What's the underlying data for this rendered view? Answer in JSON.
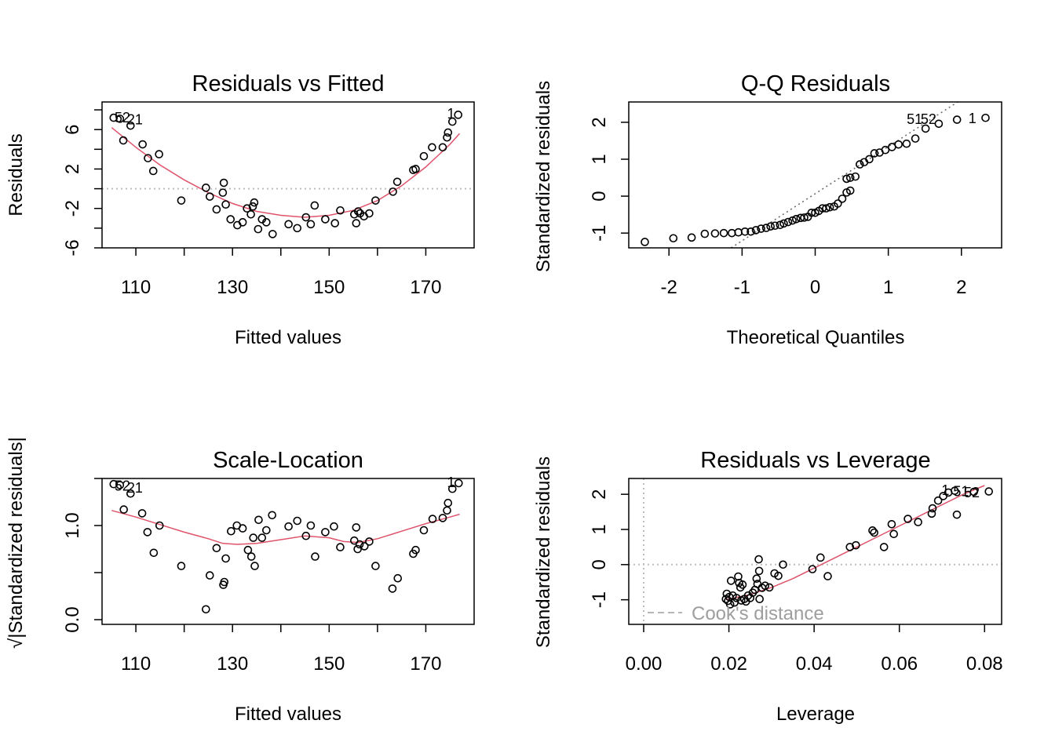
{
  "chart_data": [
    {
      "type": "scatter",
      "title": "Residuals vs Fitted",
      "xlabel": "Fitted values",
      "ylabel": "Residuals",
      "xlim": [
        103,
        180
      ],
      "ylim": [
        -6.0,
        8.8
      ],
      "xticks": [
        110,
        120,
        130,
        140,
        150,
        160,
        170
      ],
      "xtick_labels": [
        "110",
        "130",
        "150",
        "170"
      ],
      "yticks": [
        -6,
        -4,
        -2,
        0,
        2,
        4,
        6,
        8
      ],
      "ytick_labels": [
        "-6",
        "-2",
        "2",
        "6"
      ],
      "refline": {
        "kind": "horizontal",
        "y": 0,
        "style": "dotted"
      },
      "points": [
        [
          105.4,
          7.2
        ],
        [
          106.7,
          7.1
        ],
        [
          107.4,
          4.9
        ],
        [
          108.9,
          6.4
        ],
        [
          111.4,
          4.5
        ],
        [
          112.5,
          3.1
        ],
        [
          113.6,
          1.8
        ],
        [
          114.8,
          3.5
        ],
        [
          119.4,
          -1.2
        ],
        [
          124.5,
          0.1
        ],
        [
          125.3,
          -0.8
        ],
        [
          126.7,
          -2.1
        ],
        [
          128.0,
          -0.4
        ],
        [
          128.2,
          0.6
        ],
        [
          128.6,
          -1.6
        ],
        [
          129.6,
          -3.1
        ],
        [
          131.0,
          -3.7
        ],
        [
          132.1,
          -3.4
        ],
        [
          133.0,
          -2.0
        ],
        [
          133.8,
          -2.6
        ],
        [
          134.5,
          -1.4
        ],
        [
          134.2,
          -1.8
        ],
        [
          135.3,
          -4.1
        ],
        [
          136.1,
          -3.1
        ],
        [
          137.0,
          -3.4
        ],
        [
          138.3,
          -4.6
        ],
        [
          141.6,
          -3.6
        ],
        [
          143.4,
          -4.0
        ],
        [
          145.2,
          -2.9
        ],
        [
          146.2,
          -3.6
        ],
        [
          147.0,
          -1.7
        ],
        [
          149.2,
          -3.1
        ],
        [
          151.2,
          -3.5
        ],
        [
          152.3,
          -2.2
        ],
        [
          155.2,
          -2.6
        ],
        [
          155.6,
          -3.5
        ],
        [
          156.0,
          -2.3
        ],
        [
          156.4,
          -2.5
        ],
        [
          157.2,
          -2.8
        ],
        [
          158.3,
          -2.5
        ],
        [
          159.6,
          -1.2
        ],
        [
          163.2,
          -0.3
        ],
        [
          164.1,
          0.7
        ],
        [
          167.4,
          1.9
        ],
        [
          167.9,
          2.0
        ],
        [
          169.6,
          3.3
        ],
        [
          171.3,
          4.2
        ],
        [
          173.5,
          4.2
        ],
        [
          174.4,
          5.2
        ],
        [
          174.6,
          5.7
        ],
        [
          175.5,
          6.8
        ],
        [
          176.7,
          7.5
        ]
      ],
      "smooth": [
        [
          105,
          6.2
        ],
        [
          110,
          4.2
        ],
        [
          115,
          2.4
        ],
        [
          120,
          0.9
        ],
        [
          125,
          -0.4
        ],
        [
          130,
          -1.5
        ],
        [
          135,
          -2.3
        ],
        [
          140,
          -2.7
        ],
        [
          145,
          -2.9
        ],
        [
          150,
          -2.7
        ],
        [
          155,
          -2.2
        ],
        [
          160,
          -1.2
        ],
        [
          165,
          0.3
        ],
        [
          170,
          2.2
        ],
        [
          175,
          4.5
        ],
        [
          177,
          5.6
        ]
      ],
      "labels": [
        {
          "x": 107.2,
          "y": 7.2,
          "text": "52"
        },
        {
          "x": 109.8,
          "y": 7.0,
          "text": "21"
        },
        {
          "x": 175.2,
          "y": 7.6,
          "text": "1"
        }
      ]
    },
    {
      "type": "scatter",
      "title": "Q-Q Residuals",
      "xlabel": "Theoretical Quantiles",
      "ylabel": "Standardized residuals",
      "xlim": [
        -2.55,
        2.55
      ],
      "ylim": [
        -1.4,
        2.55
      ],
      "xticks": [
        -2,
        -1,
        0,
        1,
        2
      ],
      "xtick_labels": [
        "-2",
        "-1",
        "0",
        "1",
        "2"
      ],
      "yticks": [
        -1,
        0,
        1,
        2
      ],
      "ytick_labels": [
        "-1",
        "0",
        "1",
        "2"
      ],
      "refline": {
        "kind": "line",
        "x1": -1.15,
        "y1": -1.4,
        "x2": 1.95,
        "y2": 2.55,
        "style": "dotted"
      },
      "points": [
        [
          -2.33,
          -1.24
        ],
        [
          -1.94,
          -1.14
        ],
        [
          -1.69,
          -1.12
        ],
        [
          -1.51,
          -1.02
        ],
        [
          -1.37,
          -1.01
        ],
        [
          -1.25,
          -1.0
        ],
        [
          -1.14,
          -1.0
        ],
        [
          -1.05,
          -0.98
        ],
        [
          -0.96,
          -0.96
        ],
        [
          -0.88,
          -0.96
        ],
        [
          -0.81,
          -0.92
        ],
        [
          -0.74,
          -0.88
        ],
        [
          -0.67,
          -0.86
        ],
        [
          -0.61,
          -0.82
        ],
        [
          -0.55,
          -0.8
        ],
        [
          -0.48,
          -0.78
        ],
        [
          -0.43,
          -0.74
        ],
        [
          -0.37,
          -0.7
        ],
        [
          -0.31,
          -0.66
        ],
        [
          -0.26,
          -0.62
        ],
        [
          -0.2,
          -0.59
        ],
        [
          -0.15,
          -0.58
        ],
        [
          -0.1,
          -0.56
        ],
        [
          -0.05,
          -0.45
        ],
        [
          0.0,
          -0.45
        ],
        [
          0.05,
          -0.4
        ],
        [
          0.1,
          -0.33
        ],
        [
          0.15,
          -0.33
        ],
        [
          0.2,
          -0.3
        ],
        [
          0.26,
          -0.28
        ],
        [
          0.31,
          -0.2
        ],
        [
          0.37,
          -0.07
        ],
        [
          0.43,
          0.1
        ],
        [
          0.48,
          0.15
        ],
        [
          0.43,
          0.47
        ],
        [
          0.48,
          0.5
        ],
        [
          0.55,
          0.53
        ],
        [
          0.61,
          0.86
        ],
        [
          0.67,
          0.92
        ],
        [
          0.74,
          1.0
        ],
        [
          0.81,
          1.16
        ],
        [
          0.88,
          1.18
        ],
        [
          0.96,
          1.25
        ],
        [
          1.05,
          1.33
        ],
        [
          1.14,
          1.4
        ],
        [
          1.25,
          1.42
        ],
        [
          1.37,
          1.56
        ],
        [
          1.51,
          1.83
        ],
        [
          1.69,
          1.96
        ],
        [
          1.94,
          2.07
        ],
        [
          2.33,
          2.12
        ]
      ],
      "labels": [
        {
          "x": 1.36,
          "y": 2.08,
          "text": "51"
        },
        {
          "x": 1.55,
          "y": 2.08,
          "text": "52"
        },
        {
          "x": 2.15,
          "y": 2.1,
          "text": "1"
        }
      ]
    },
    {
      "type": "scatter",
      "title": "Scale-Location",
      "xlabel": "Fitted values",
      "ylabel": "√|Standardized residuals|",
      "xlim": [
        103,
        180
      ],
      "ylim": [
        -0.05,
        1.5
      ],
      "xticks": [
        110,
        120,
        130,
        140,
        150,
        160,
        170
      ],
      "xtick_labels": [
        "110",
        "130",
        "150",
        "170"
      ],
      "yticks": [
        0.0,
        0.5,
        1.0,
        1.5
      ],
      "ytick_labels": [
        "0.0",
        "1.0"
      ],
      "points": [
        [
          105.4,
          1.44
        ],
        [
          106.7,
          1.43
        ],
        [
          107.5,
          1.17
        ],
        [
          108.9,
          1.34
        ],
        [
          111.3,
          1.13
        ],
        [
          112.4,
          0.93
        ],
        [
          113.7,
          0.71
        ],
        [
          114.9,
          1.0
        ],
        [
          119.4,
          0.57
        ],
        [
          124.5,
          0.11
        ],
        [
          125.3,
          0.47
        ],
        [
          126.7,
          0.76
        ],
        [
          128.1,
          0.37
        ],
        [
          128.3,
          0.4
        ],
        [
          128.6,
          0.65
        ],
        [
          129.7,
          0.94
        ],
        [
          130.9,
          1.0
        ],
        [
          132.1,
          0.97
        ],
        [
          133.2,
          0.74
        ],
        [
          133.9,
          0.67
        ],
        [
          134.6,
          0.57
        ],
        [
          134.3,
          0.87
        ],
        [
          135.4,
          1.06
        ],
        [
          136.1,
          0.87
        ],
        [
          137.0,
          0.95
        ],
        [
          138.2,
          1.11
        ],
        [
          141.6,
          0.99
        ],
        [
          143.4,
          1.05
        ],
        [
          145.2,
          0.89
        ],
        [
          146.2,
          1.0
        ],
        [
          147.1,
          0.67
        ],
        [
          149.2,
          0.93
        ],
        [
          151.0,
          0.99
        ],
        [
          152.3,
          0.77
        ],
        [
          155.2,
          0.84
        ],
        [
          155.6,
          0.98
        ],
        [
          155.9,
          0.75
        ],
        [
          156.3,
          0.8
        ],
        [
          157.3,
          0.78
        ],
        [
          158.3,
          0.83
        ],
        [
          159.6,
          0.57
        ],
        [
          163.1,
          0.33
        ],
        [
          164.2,
          0.44
        ],
        [
          167.4,
          0.7
        ],
        [
          167.9,
          0.74
        ],
        [
          169.6,
          0.95
        ],
        [
          171.4,
          1.07
        ],
        [
          173.5,
          1.08
        ],
        [
          174.4,
          1.16
        ],
        [
          174.6,
          1.24
        ],
        [
          175.5,
          1.39
        ],
        [
          176.8,
          1.45
        ]
      ],
      "smooth": [
        [
          105,
          1.16
        ],
        [
          110,
          1.09
        ],
        [
          115,
          1.01
        ],
        [
          120,
          0.93
        ],
        [
          125,
          0.86
        ],
        [
          128,
          0.81
        ],
        [
          131,
          0.8
        ],
        [
          135,
          0.81
        ],
        [
          140,
          0.85
        ],
        [
          145,
          0.89
        ],
        [
          150,
          0.87
        ],
        [
          153,
          0.83
        ],
        [
          156,
          0.82
        ],
        [
          160,
          0.86
        ],
        [
          165,
          0.94
        ],
        [
          170,
          1.02
        ],
        [
          175,
          1.09
        ],
        [
          177,
          1.12
        ]
      ],
      "labels": [
        {
          "x": 107.2,
          "y": 1.42,
          "text": "52"
        },
        {
          "x": 109.8,
          "y": 1.4,
          "text": "21"
        },
        {
          "x": 175.2,
          "y": 1.46,
          "text": "1"
        }
      ]
    },
    {
      "type": "scatter",
      "title": "Residuals vs Leverage",
      "xlabel": "Leverage",
      "ylabel": "Standardized residuals",
      "xlim": [
        -0.0035,
        0.084
      ],
      "ylim": [
        -1.7,
        2.45
      ],
      "xticks": [
        0.0,
        0.02,
        0.04,
        0.06,
        0.08
      ],
      "xtick_labels": [
        "0.00",
        "0.02",
        "0.04",
        "0.06",
        "0.08"
      ],
      "yticks": [
        -1,
        0,
        1,
        2
      ],
      "ytick_labels": [
        "-1",
        "0",
        "1",
        "2"
      ],
      "refline": {
        "kind": "horizontal",
        "y": 0,
        "style": "dotted"
      },
      "vline": {
        "x": 0,
        "style": "dotted"
      },
      "legend": {
        "text": "Cook's distance",
        "position": "bottom-left"
      },
      "points": [
        [
          0.0193,
          -0.98
        ],
        [
          0.0195,
          -0.83
        ],
        [
          0.0198,
          -1.03
        ],
        [
          0.0201,
          -0.92
        ],
        [
          0.0203,
          -1.13
        ],
        [
          0.0205,
          -0.46
        ],
        [
          0.0209,
          -0.88
        ],
        [
          0.0213,
          -1.08
        ],
        [
          0.0218,
          -0.95
        ],
        [
          0.0222,
          -0.34
        ],
        [
          0.0224,
          -0.52
        ],
        [
          0.0227,
          -0.65
        ],
        [
          0.0229,
          -1.02
        ],
        [
          0.0232,
          -0.57
        ],
        [
          0.0236,
          -0.98
        ],
        [
          0.024,
          -1.05
        ],
        [
          0.0245,
          -0.88
        ],
        [
          0.025,
          -0.95
        ],
        [
          0.0256,
          -0.8
        ],
        [
          0.0261,
          -0.72
        ],
        [
          0.0265,
          -0.4
        ],
        [
          0.0267,
          -0.55
        ],
        [
          0.027,
          0.15
        ],
        [
          0.0271,
          -0.18
        ],
        [
          0.0272,
          -0.98
        ],
        [
          0.0278,
          -0.66
        ],
        [
          0.0285,
          -0.6
        ],
        [
          0.0295,
          -0.65
        ],
        [
          0.0307,
          -0.25
        ],
        [
          0.0316,
          -0.32
        ],
        [
          0.0327,
          0.0
        ],
        [
          0.0396,
          -0.13
        ],
        [
          0.0415,
          0.2
        ],
        [
          0.0432,
          -0.33
        ],
        [
          0.0484,
          0.5
        ],
        [
          0.0498,
          0.55
        ],
        [
          0.0537,
          0.97
        ],
        [
          0.0541,
          0.91
        ],
        [
          0.0564,
          0.5
        ],
        [
          0.0582,
          1.15
        ],
        [
          0.0587,
          0.87
        ],
        [
          0.062,
          1.3
        ],
        [
          0.0644,
          1.21
        ],
        [
          0.0676,
          1.45
        ],
        [
          0.0678,
          1.6
        ],
        [
          0.0691,
          1.82
        ],
        [
          0.0703,
          1.95
        ],
        [
          0.0715,
          2.05
        ],
        [
          0.073,
          2.1
        ],
        [
          0.0735,
          1.42
        ],
        [
          0.0775,
          2.07
        ],
        [
          0.081,
          2.08
        ]
      ],
      "smooth": [
        [
          0.0193,
          -1.0
        ],
        [
          0.025,
          -0.85
        ],
        [
          0.03,
          -0.65
        ],
        [
          0.035,
          -0.4
        ],
        [
          0.04,
          -0.1
        ],
        [
          0.045,
          0.2
        ],
        [
          0.05,
          0.5
        ],
        [
          0.055,
          0.8
        ],
        [
          0.06,
          1.1
        ],
        [
          0.065,
          1.4
        ],
        [
          0.07,
          1.7
        ],
        [
          0.075,
          2.0
        ],
        [
          0.08,
          2.25
        ]
      ],
      "labels": [
        {
          "x": 0.0708,
          "y": 2.12,
          "text": "1"
        },
        {
          "x": 0.0745,
          "y": 2.08,
          "text": "51"
        },
        {
          "x": 0.077,
          "y": 2.05,
          "text": "52"
        }
      ]
    }
  ],
  "colors": {
    "points": "#000000",
    "smooth": "#DF536B",
    "reference": "#bdbdbd",
    "legend_text": "#9e9e9e"
  }
}
